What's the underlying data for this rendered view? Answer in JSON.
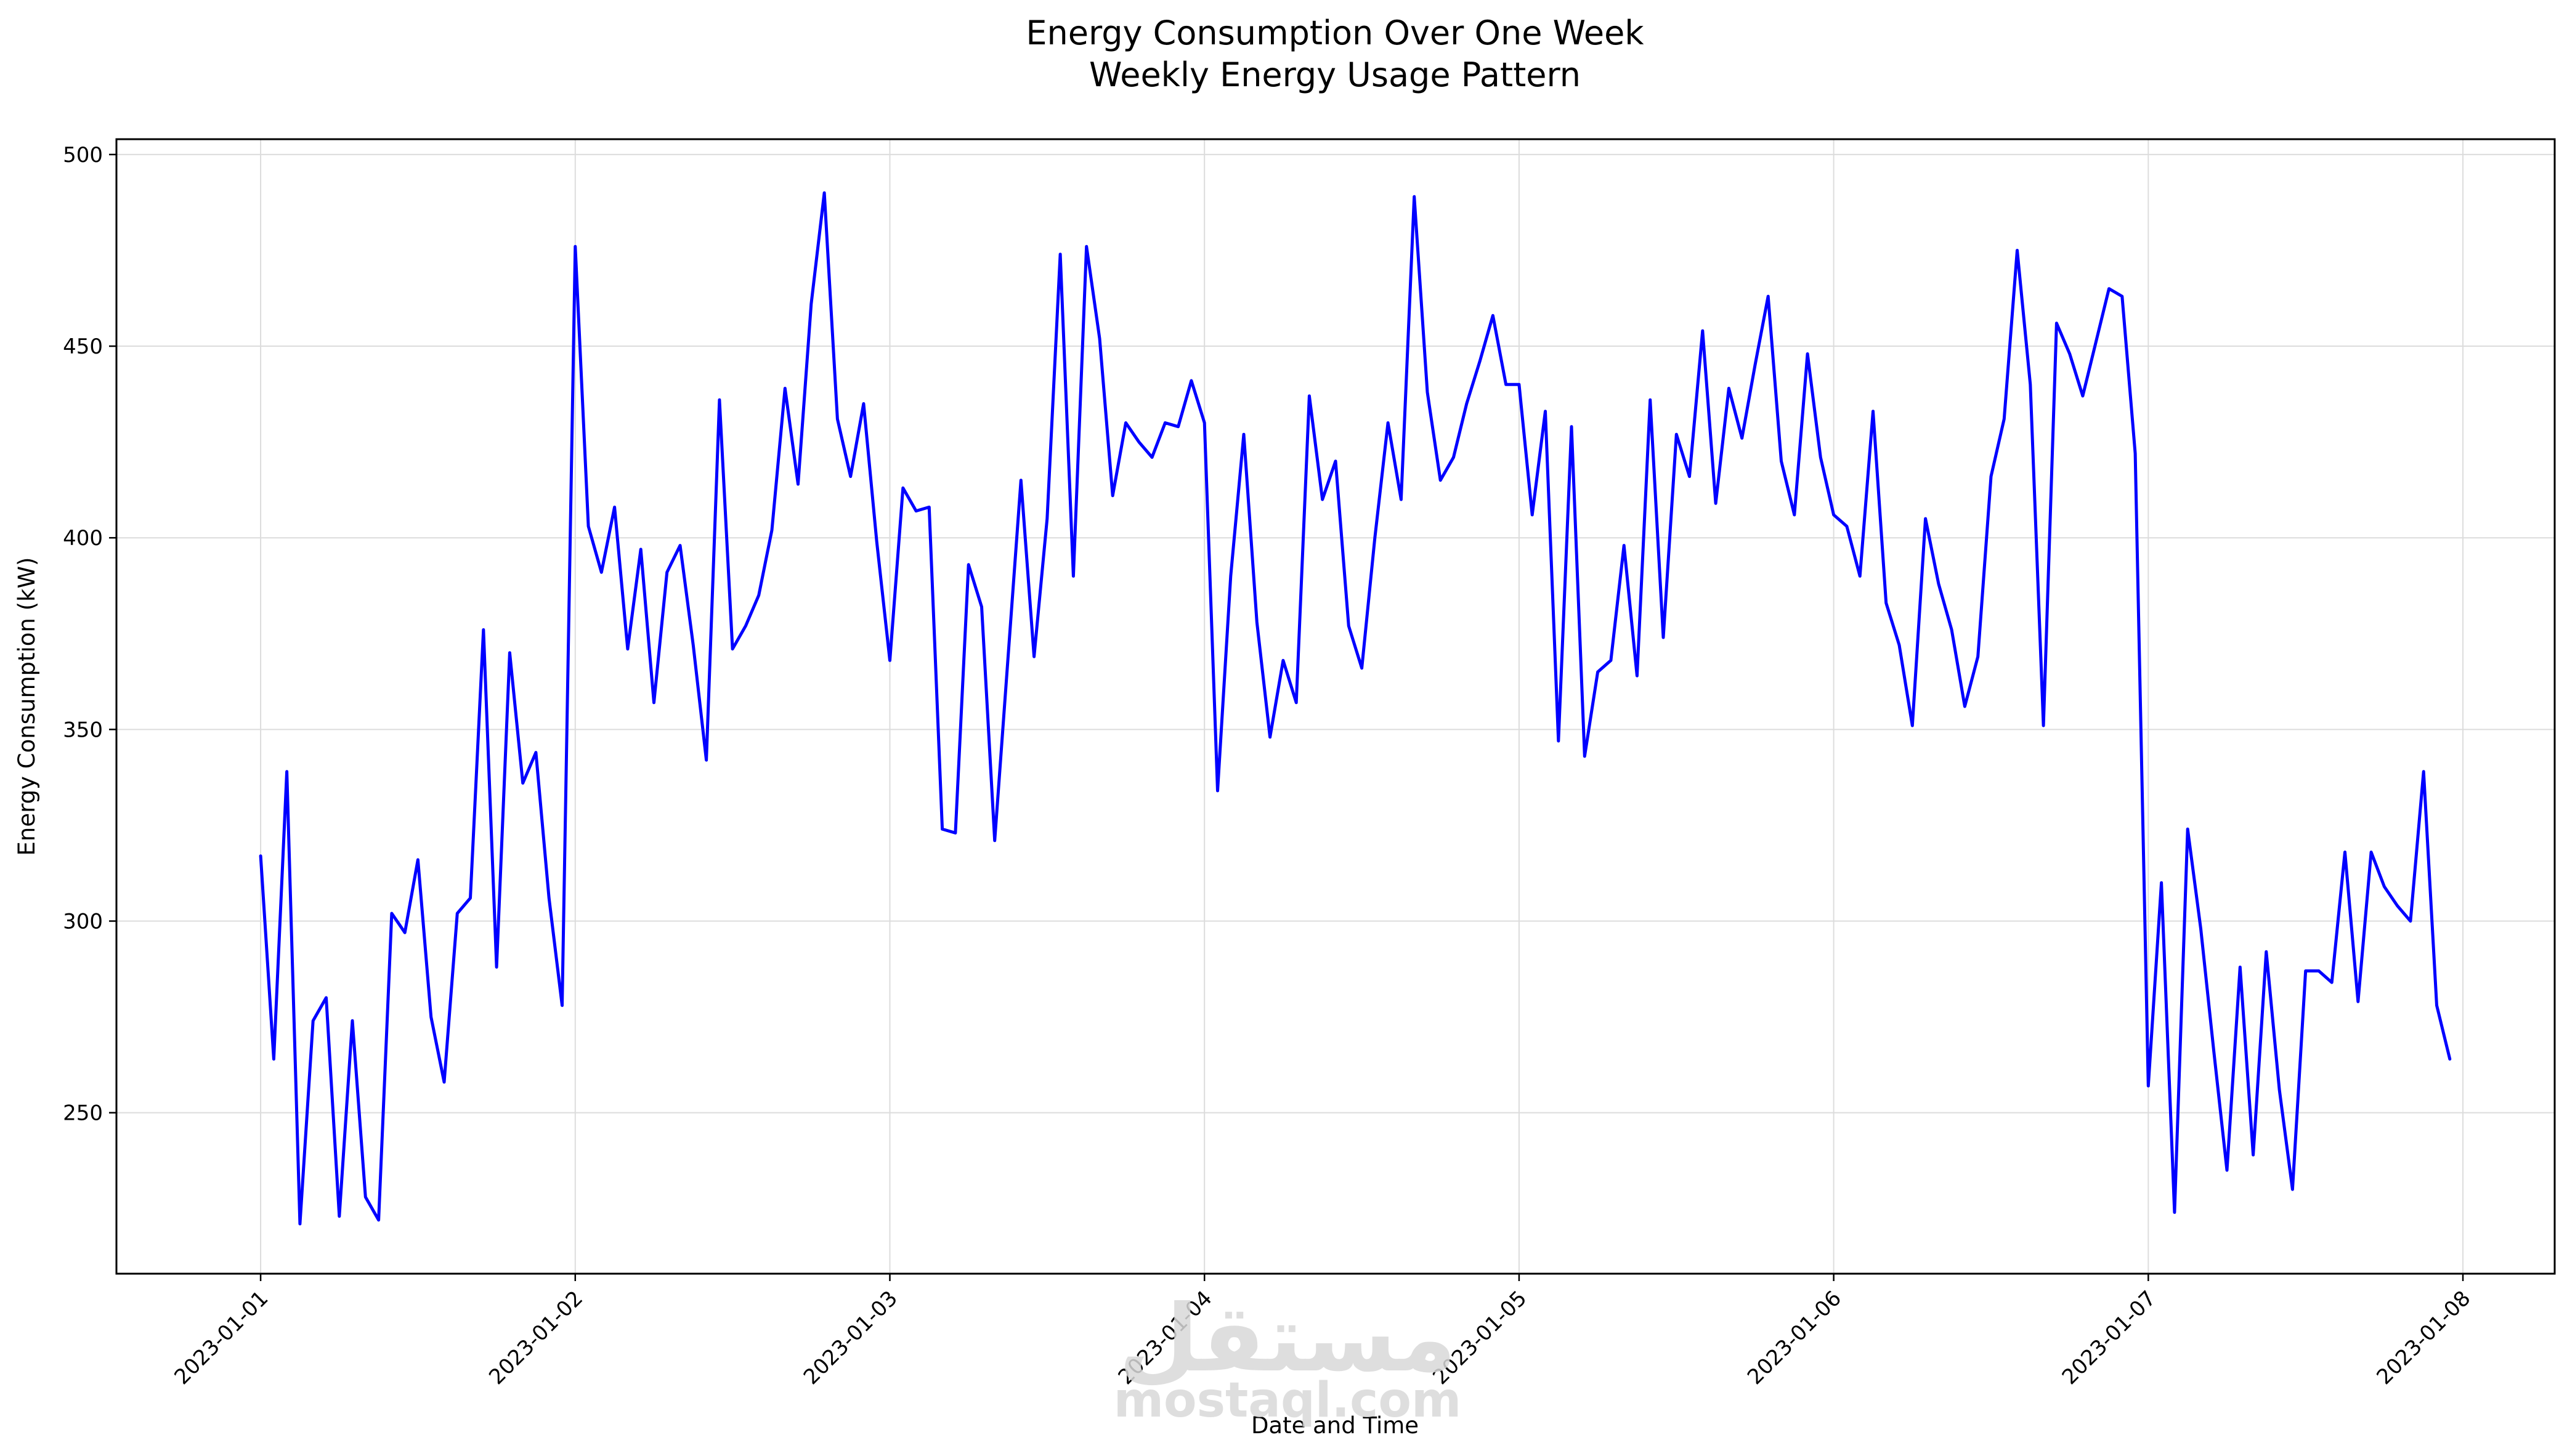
{
  "chart_data": {
    "type": "line",
    "title": "Energy Consumption Over One Week",
    "subtitle": "Weekly Energy Usage Pattern",
    "xlabel": "Date and Time",
    "ylabel": "Energy Consumption (kW)",
    "grid": true,
    "line_color": "#0000ff",
    "x_start": "2023-01-01T00:00",
    "x_step_hours": 1,
    "xlim": [
      "2022-12-31T13:00",
      "2023-01-08T07:00"
    ],
    "ylim": [
      208,
      504
    ],
    "x_ticks": [
      "2023-01-01",
      "2023-01-02",
      "2023-01-03",
      "2023-01-04",
      "2023-01-05",
      "2023-01-06",
      "2023-01-07",
      "2023-01-08"
    ],
    "y_ticks": [
      250,
      300,
      350,
      400,
      450,
      500
    ],
    "series": [
      {
        "values": [
          317,
          264,
          339,
          221,
          274,
          280,
          223,
          274,
          228,
          222,
          302,
          297,
          316,
          275,
          258,
          302,
          306,
          376,
          288,
          370,
          336,
          344,
          306,
          278,
          476,
          403,
          391,
          408,
          371,
          397,
          357,
          391,
          398,
          372,
          342,
          436,
          371,
          377,
          385,
          402,
          439,
          414,
          461,
          490,
          431,
          416,
          435,
          399,
          368,
          413,
          407,
          408,
          324,
          323,
          393,
          382,
          321,
          368,
          415,
          369,
          405,
          474,
          390,
          476,
          452,
          411,
          430,
          425,
          421,
          430,
          429,
          441,
          430,
          334,
          390,
          427,
          378,
          348,
          368,
          357,
          437,
          410,
          420,
          377,
          366,
          400,
          430,
          410,
          489,
          438,
          415,
          421,
          435,
          446,
          458,
          440,
          440,
          406,
          433,
          347,
          429,
          343,
          365,
          368,
          398,
          364,
          436,
          374,
          427,
          416,
          454,
          409,
          439,
          426,
          445,
          463,
          420,
          406,
          448,
          421,
          406,
          403,
          390,
          433,
          383,
          372,
          351,
          405,
          388,
          376,
          356,
          369,
          416,
          431,
          475,
          440,
          351,
          456,
          448,
          437,
          451,
          465,
          463,
          422,
          257,
          310,
          224,
          324,
          298,
          266,
          235,
          288,
          239,
          292,
          256,
          230,
          287,
          287,
          284,
          318,
          279,
          318,
          309,
          304,
          300,
          339,
          278,
          264
        ]
      }
    ]
  },
  "watermark": {
    "arabic": "مستقل",
    "latin": "mostaql.com"
  }
}
